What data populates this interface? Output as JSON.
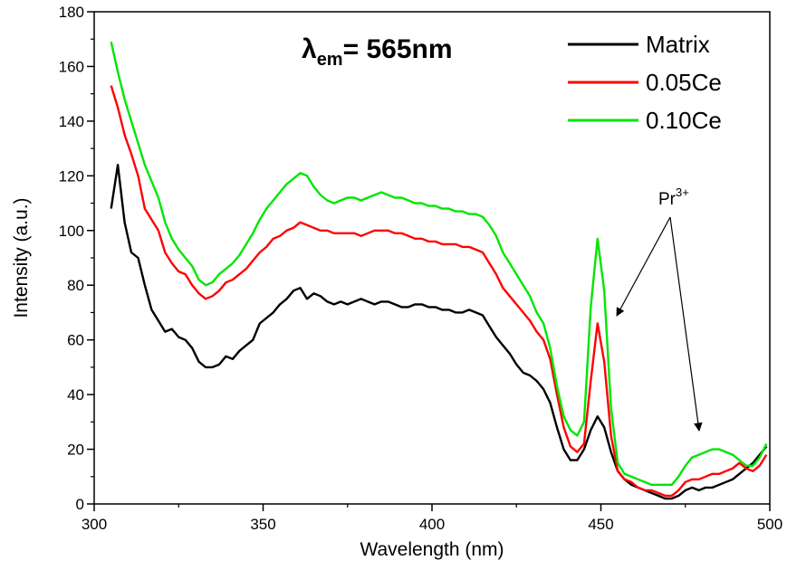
{
  "chart_data": {
    "type": "line",
    "title": "",
    "xlabel": "Wavelength (nm)",
    "ylabel": "Intensity (a.u.)",
    "xlim": [
      300,
      500
    ],
    "ylim": [
      0,
      180
    ],
    "x_ticks": [
      300,
      350,
      400,
      450,
      500
    ],
    "y_ticks": [
      0,
      20,
      40,
      60,
      80,
      100,
      120,
      140,
      160,
      180
    ],
    "grid": false,
    "legend_position": "top-right",
    "annotation": {
      "lambda": "λ",
      "sub": "em",
      "value": "= 565nm"
    },
    "pr_label": {
      "base": "Pr",
      "sup": "3+"
    },
    "series": [
      {
        "name": "Matrix",
        "color": "#000000",
        "x": [
          305,
          307,
          309,
          311,
          313,
          315,
          317,
          319,
          321,
          323,
          325,
          327,
          329,
          331,
          333,
          335,
          337,
          339,
          341,
          343,
          345,
          347,
          349,
          351,
          353,
          355,
          357,
          359,
          361,
          363,
          365,
          367,
          369,
          371,
          373,
          375,
          377,
          379,
          381,
          383,
          385,
          387,
          389,
          391,
          393,
          395,
          397,
          399,
          401,
          403,
          405,
          407,
          409,
          411,
          413,
          415,
          417,
          419,
          421,
          423,
          425,
          427,
          429,
          431,
          433,
          435,
          437,
          439,
          441,
          443,
          445,
          447,
          449,
          451,
          453,
          455,
          457,
          459,
          461,
          463,
          465,
          467,
          469,
          471,
          473,
          475,
          477,
          479,
          481,
          483,
          485,
          487,
          489,
          491,
          493,
          495,
          497,
          499
        ],
        "values": [
          108,
          124,
          103,
          92,
          90,
          80,
          71,
          67,
          63,
          64,
          61,
          60,
          57,
          52,
          50,
          50,
          51,
          54,
          53,
          56,
          58,
          60,
          66,
          68,
          70,
          73,
          75,
          78,
          79,
          75,
          77,
          76,
          74,
          73,
          74,
          73,
          74,
          75,
          74,
          73,
          74,
          74,
          73,
          72,
          72,
          73,
          73,
          72,
          72,
          71,
          71,
          70,
          70,
          71,
          70,
          69,
          65,
          61,
          58,
          55,
          51,
          48,
          47,
          45,
          42,
          37,
          28,
          20,
          16,
          16,
          20,
          27,
          32,
          28,
          19,
          12,
          9,
          7,
          6,
          5,
          4,
          3,
          2,
          2,
          3,
          5,
          6,
          5,
          6,
          6,
          7,
          8,
          9,
          11,
          13,
          15,
          18,
          21
        ]
      },
      {
        "name": "0.05Ce",
        "color": "#ff0000",
        "x": [
          305,
          307,
          309,
          311,
          313,
          315,
          317,
          319,
          321,
          323,
          325,
          327,
          329,
          331,
          333,
          335,
          337,
          339,
          341,
          343,
          345,
          347,
          349,
          351,
          353,
          355,
          357,
          359,
          361,
          363,
          365,
          367,
          369,
          371,
          373,
          375,
          377,
          379,
          381,
          383,
          385,
          387,
          389,
          391,
          393,
          395,
          397,
          399,
          401,
          403,
          405,
          407,
          409,
          411,
          413,
          415,
          417,
          419,
          421,
          423,
          425,
          427,
          429,
          431,
          433,
          435,
          437,
          439,
          441,
          443,
          445,
          447,
          449,
          451,
          453,
          455,
          457,
          459,
          461,
          463,
          465,
          467,
          469,
          471,
          473,
          475,
          477,
          479,
          481,
          483,
          485,
          487,
          489,
          491,
          493,
          495,
          497,
          499
        ],
        "values": [
          153,
          145,
          135,
          128,
          120,
          108,
          104,
          100,
          92,
          88,
          85,
          84,
          80,
          77,
          75,
          76,
          78,
          81,
          82,
          84,
          86,
          89,
          92,
          94,
          97,
          98,
          100,
          101,
          103,
          102,
          101,
          100,
          100,
          99,
          99,
          99,
          99,
          98,
          99,
          100,
          100,
          100,
          99,
          99,
          98,
          97,
          97,
          96,
          96,
          95,
          95,
          95,
          94,
          94,
          93,
          92,
          88,
          84,
          79,
          76,
          73,
          70,
          67,
          63,
          60,
          53,
          40,
          28,
          21,
          19,
          22,
          45,
          66,
          52,
          25,
          12,
          9,
          8,
          6,
          5,
          5,
          4,
          3,
          3,
          5,
          8,
          9,
          9,
          10,
          11,
          11,
          12,
          13,
          15,
          13,
          12,
          14,
          18
        ]
      },
      {
        "name": "0.10Ce",
        "color": "#00e600",
        "x": [
          305,
          307,
          309,
          311,
          313,
          315,
          317,
          319,
          321,
          323,
          325,
          327,
          329,
          331,
          333,
          335,
          337,
          339,
          341,
          343,
          345,
          347,
          349,
          351,
          353,
          355,
          357,
          359,
          361,
          363,
          365,
          367,
          369,
          371,
          373,
          375,
          377,
          379,
          381,
          383,
          385,
          387,
          389,
          391,
          393,
          395,
          397,
          399,
          401,
          403,
          405,
          407,
          409,
          411,
          413,
          415,
          417,
          419,
          421,
          423,
          425,
          427,
          429,
          431,
          433,
          435,
          437,
          439,
          441,
          443,
          445,
          447,
          449,
          451,
          453,
          455,
          457,
          459,
          461,
          463,
          465,
          467,
          469,
          471,
          473,
          475,
          477,
          479,
          481,
          483,
          485,
          487,
          489,
          491,
          493,
          495,
          497,
          499
        ],
        "values": [
          169,
          158,
          148,
          140,
          132,
          124,
          118,
          112,
          103,
          97,
          93,
          90,
          87,
          82,
          80,
          81,
          84,
          86,
          88,
          91,
          95,
          99,
          104,
          108,
          111,
          114,
          117,
          119,
          121,
          120,
          116,
          113,
          111,
          110,
          111,
          112,
          112,
          111,
          112,
          113,
          114,
          113,
          112,
          112,
          111,
          110,
          110,
          109,
          109,
          108,
          108,
          107,
          107,
          106,
          106,
          105,
          102,
          98,
          92,
          88,
          84,
          80,
          76,
          70,
          66,
          57,
          43,
          32,
          27,
          25,
          30,
          72,
          97,
          78,
          35,
          15,
          11,
          10,
          9,
          8,
          7,
          7,
          7,
          7,
          10,
          14,
          17,
          18,
          19,
          20,
          20,
          19,
          18,
          16,
          14,
          14,
          17,
          22
        ]
      }
    ]
  }
}
